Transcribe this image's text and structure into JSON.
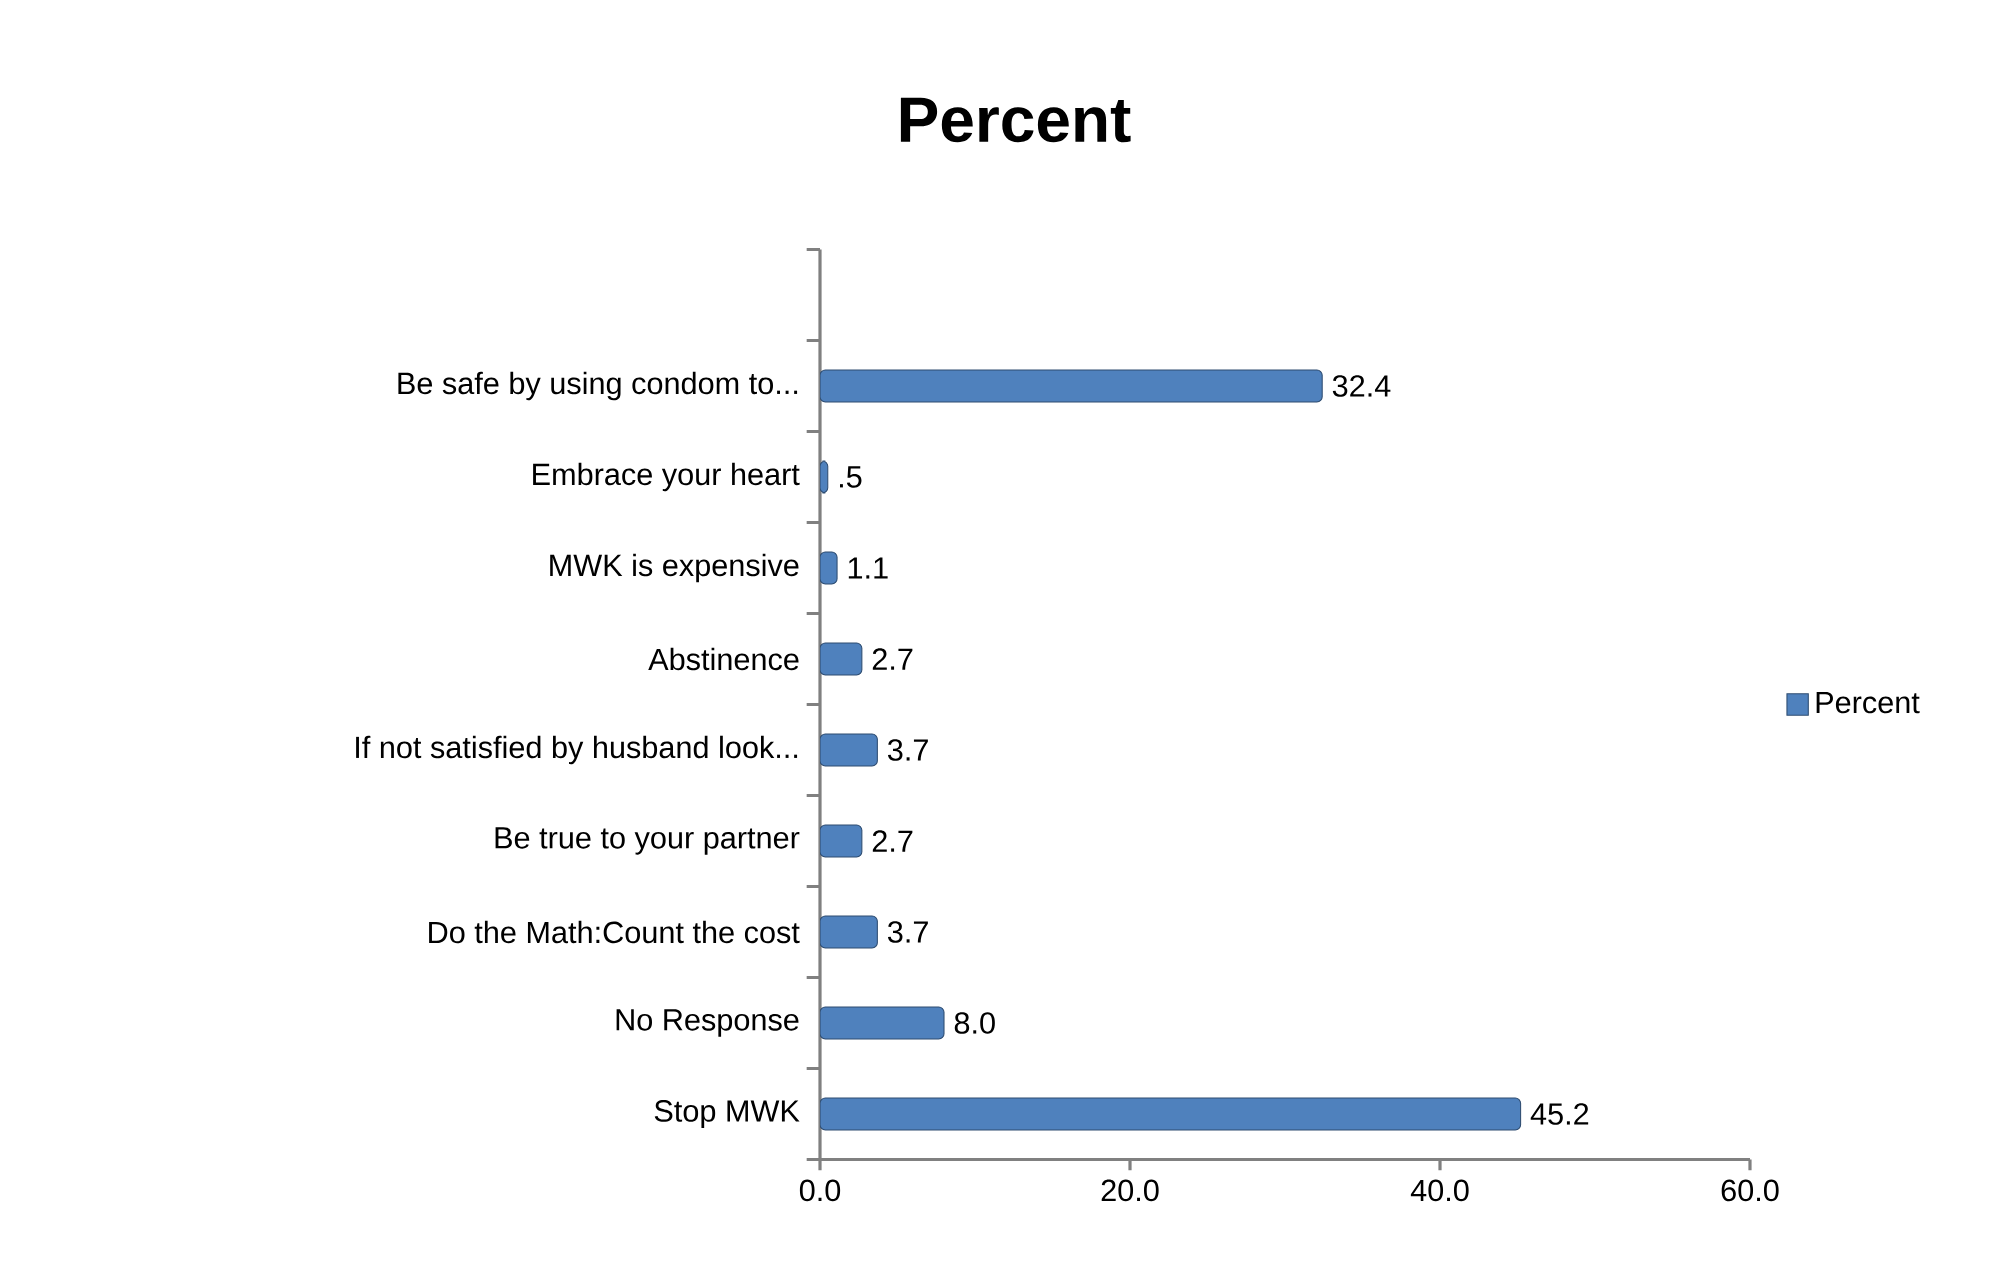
{
  "chart_data": {
    "type": "bar",
    "orientation": "horizontal",
    "title": "Percent",
    "categories": [
      null,
      "Be safe by using  condom to...",
      "Embrace your heart",
      "MWK is expensive",
      "Abstinence",
      "If not satisfied by husband look...",
      "Be true to your partner",
      "Do the Math:Count the cost",
      "No Response",
      "Stop MWK"
    ],
    "series": [
      {
        "name": "Percent",
        "color": "#4f81bd",
        "values": [
          null,
          32.4,
          0.5,
          1.1,
          2.7,
          3.7,
          2.7,
          3.7,
          8.0,
          45.2
        ],
        "value_labels": [
          null,
          "32.4",
          ".5",
          "1.1",
          "2.7",
          "3.7",
          "2.7",
          "3.7",
          "8.0",
          "45.2"
        ]
      }
    ],
    "xlim": [
      0,
      60
    ],
    "xticks": [
      {
        "value": 0,
        "label": "0.0"
      },
      {
        "value": 20,
        "label": "20.0"
      },
      {
        "value": 40,
        "label": "40.0"
      },
      {
        "value": 60,
        "label": "60.0"
      }
    ],
    "grid": false,
    "legend": "right"
  }
}
